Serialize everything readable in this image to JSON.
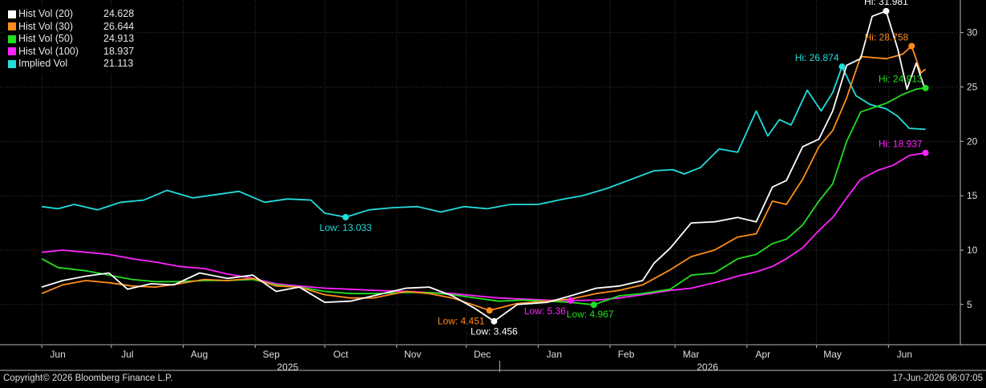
{
  "chart_data": {
    "type": "line",
    "title": "",
    "xlabel": "",
    "ylabel": "",
    "x_range": [
      "2025-06-01",
      "2026-06-17"
    ],
    "ylim": [
      1.3,
      33.0
    ],
    "y_ticks": [
      5,
      10,
      15,
      20,
      25,
      30
    ],
    "y_axis_side": "right",
    "grid": true,
    "legend_position": "top-left",
    "x_ticks": [
      {
        "label": "Jun",
        "date": "2025-06-01"
      },
      {
        "label": "Jul",
        "date": "2025-07-01"
      },
      {
        "label": "Aug",
        "date": "2025-08-01"
      },
      {
        "label": "Sep",
        "date": "2025-09-01"
      },
      {
        "label": "Oct",
        "date": "2025-10-01"
      },
      {
        "label": "Nov",
        "date": "2025-11-01"
      },
      {
        "label": "Dec",
        "date": "2025-12-01"
      },
      {
        "label": "Jan",
        "date": "2026-01-01"
      },
      {
        "label": "Feb",
        "date": "2026-02-01"
      },
      {
        "label": "Mar",
        "date": "2026-03-01"
      },
      {
        "label": "Apr",
        "date": "2026-04-01"
      },
      {
        "label": "May",
        "date": "2026-05-01"
      },
      {
        "label": "Jun",
        "date": "2026-06-01"
      }
    ],
    "year_labels": [
      {
        "label": "2025",
        "date": "2025-09-15"
      },
      {
        "label": "2026",
        "date": "2026-03-15"
      }
    ],
    "year_divider_date": "2026-01-01",
    "series": [
      {
        "name": "Hist Vol (20)",
        "last": "24.628",
        "color": "#ffffff",
        "points": [
          [
            "2025-06-01",
            6.6
          ],
          [
            "2025-06-10",
            7.2
          ],
          [
            "2025-06-20",
            7.6
          ],
          [
            "2025-06-30",
            7.9
          ],
          [
            "2025-07-08",
            6.4
          ],
          [
            "2025-07-18",
            6.9
          ],
          [
            "2025-07-28",
            6.8
          ],
          [
            "2025-08-08",
            7.9
          ],
          [
            "2025-08-20",
            7.4
          ],
          [
            "2025-08-31",
            7.7
          ],
          [
            "2025-09-10",
            6.2
          ],
          [
            "2025-09-20",
            6.6
          ],
          [
            "2025-10-01",
            5.2
          ],
          [
            "2025-10-12",
            5.3
          ],
          [
            "2025-10-22",
            5.8
          ],
          [
            "2025-11-05",
            6.5
          ],
          [
            "2025-11-15",
            6.6
          ],
          [
            "2025-11-25",
            5.8
          ],
          [
            "2025-12-05",
            4.6
          ],
          [
            "2025-12-13",
            3.46
          ],
          [
            "2025-12-23",
            5.0
          ],
          [
            "2026-01-05",
            5.2
          ],
          [
            "2026-01-15",
            5.8
          ],
          [
            "2026-01-26",
            6.5
          ],
          [
            "2026-02-05",
            6.7
          ],
          [
            "2026-02-15",
            7.2
          ],
          [
            "2026-02-20",
            8.8
          ],
          [
            "2026-02-27",
            10.2
          ],
          [
            "2026-03-08",
            12.5
          ],
          [
            "2026-03-18",
            12.6
          ],
          [
            "2026-03-28",
            13.0
          ],
          [
            "2026-04-05",
            12.6
          ],
          [
            "2026-04-12",
            15.8
          ],
          [
            "2026-04-18",
            16.4
          ],
          [
            "2026-04-25",
            19.5
          ],
          [
            "2026-05-02",
            20.2
          ],
          [
            "2026-05-08",
            22.8
          ],
          [
            "2026-05-14",
            27.0
          ],
          [
            "2026-05-20",
            27.6
          ],
          [
            "2026-05-25",
            31.5
          ],
          [
            "2026-05-31",
            31.98
          ],
          [
            "2026-06-05",
            28.5
          ],
          [
            "2026-06-09",
            24.8
          ],
          [
            "2026-06-13",
            27.2
          ],
          [
            "2026-06-17",
            24.63
          ]
        ]
      },
      {
        "name": "Hist Vol (30)",
        "last": "26.644",
        "color": "#ff8c1a",
        "points": [
          [
            "2025-06-01",
            6.0
          ],
          [
            "2025-06-10",
            6.8
          ],
          [
            "2025-06-20",
            7.2
          ],
          [
            "2025-06-30",
            7.0
          ],
          [
            "2025-07-10",
            6.7
          ],
          [
            "2025-07-20",
            6.6
          ],
          [
            "2025-07-30",
            6.9
          ],
          [
            "2025-08-10",
            7.3
          ],
          [
            "2025-08-20",
            7.2
          ],
          [
            "2025-08-31",
            7.4
          ],
          [
            "2025-09-10",
            6.7
          ],
          [
            "2025-09-20",
            6.6
          ],
          [
            "2025-10-01",
            5.9
          ],
          [
            "2025-10-12",
            5.6
          ],
          [
            "2025-10-22",
            5.6
          ],
          [
            "2025-11-05",
            6.2
          ],
          [
            "2025-11-15",
            6.0
          ],
          [
            "2025-11-25",
            5.6
          ],
          [
            "2025-12-05",
            4.9
          ],
          [
            "2025-12-11",
            4.45
          ],
          [
            "2025-12-23",
            5.1
          ],
          [
            "2026-01-05",
            5.3
          ],
          [
            "2026-01-15",
            5.5
          ],
          [
            "2026-01-26",
            6.0
          ],
          [
            "2026-02-05",
            6.3
          ],
          [
            "2026-02-15",
            6.8
          ],
          [
            "2026-02-27",
            8.2
          ],
          [
            "2026-03-08",
            9.4
          ],
          [
            "2026-03-18",
            10.0
          ],
          [
            "2026-03-28",
            11.2
          ],
          [
            "2026-04-05",
            11.5
          ],
          [
            "2026-04-12",
            14.5
          ],
          [
            "2026-04-18",
            14.2
          ],
          [
            "2026-04-25",
            16.5
          ],
          [
            "2026-05-02",
            19.5
          ],
          [
            "2026-05-08",
            21.0
          ],
          [
            "2026-05-14",
            24.0
          ],
          [
            "2026-05-20",
            27.8
          ],
          [
            "2026-05-31",
            27.6
          ],
          [
            "2026-06-07",
            28.0
          ],
          [
            "2026-06-11",
            28.76
          ],
          [
            "2026-06-15",
            26.3
          ],
          [
            "2026-06-17",
            26.64
          ]
        ]
      },
      {
        "name": "Hist Vol (50)",
        "last": "24.913",
        "color": "#22dd22",
        "points": [
          [
            "2025-06-01",
            9.2
          ],
          [
            "2025-06-08",
            8.4
          ],
          [
            "2025-06-20",
            8.1
          ],
          [
            "2025-06-30",
            7.7
          ],
          [
            "2025-07-10",
            7.3
          ],
          [
            "2025-07-20",
            7.1
          ],
          [
            "2025-07-30",
            7.1
          ],
          [
            "2025-08-10",
            7.2
          ],
          [
            "2025-08-20",
            7.2
          ],
          [
            "2025-08-31",
            7.3
          ],
          [
            "2025-09-10",
            6.8
          ],
          [
            "2025-09-20",
            6.6
          ],
          [
            "2025-10-01",
            6.2
          ],
          [
            "2025-10-12",
            6.0
          ],
          [
            "2025-10-22",
            6.0
          ],
          [
            "2025-11-05",
            6.1
          ],
          [
            "2025-11-15",
            6.1
          ],
          [
            "2025-11-25",
            5.9
          ],
          [
            "2025-12-05",
            5.6
          ],
          [
            "2025-12-15",
            5.3
          ],
          [
            "2025-12-25",
            5.4
          ],
          [
            "2026-01-05",
            5.3
          ],
          [
            "2026-01-15",
            5.2
          ],
          [
            "2026-01-25",
            4.97
          ],
          [
            "2026-02-05",
            5.8
          ],
          [
            "2026-02-15",
            6.0
          ],
          [
            "2026-02-27",
            6.4
          ],
          [
            "2026-03-08",
            7.7
          ],
          [
            "2026-03-18",
            7.9
          ],
          [
            "2026-03-28",
            9.2
          ],
          [
            "2026-04-05",
            9.6
          ],
          [
            "2026-04-12",
            10.6
          ],
          [
            "2026-04-18",
            11.0
          ],
          [
            "2026-04-25",
            12.3
          ],
          [
            "2026-05-02",
            14.5
          ],
          [
            "2026-05-08",
            16.1
          ],
          [
            "2026-05-14",
            20.0
          ],
          [
            "2026-05-20",
            22.7
          ],
          [
            "2026-05-31",
            23.5
          ],
          [
            "2026-06-07",
            24.3
          ],
          [
            "2026-06-13",
            24.8
          ],
          [
            "2026-06-17",
            24.91
          ]
        ]
      },
      {
        "name": "Hist Vol (100)",
        "last": "18.937",
        "color": "#ff22ff",
        "points": [
          [
            "2025-06-01",
            9.8
          ],
          [
            "2025-06-10",
            10.0
          ],
          [
            "2025-06-20",
            9.8
          ],
          [
            "2025-06-30",
            9.6
          ],
          [
            "2025-07-10",
            9.2
          ],
          [
            "2025-07-20",
            8.9
          ],
          [
            "2025-07-30",
            8.5
          ],
          [
            "2025-08-10",
            8.3
          ],
          [
            "2025-08-20",
            7.8
          ],
          [
            "2025-08-31",
            7.4
          ],
          [
            "2025-09-10",
            6.9
          ],
          [
            "2025-09-20",
            6.7
          ],
          [
            "2025-10-01",
            6.5
          ],
          [
            "2025-10-12",
            6.4
          ],
          [
            "2025-10-22",
            6.3
          ],
          [
            "2025-11-05",
            6.2
          ],
          [
            "2025-11-15",
            6.1
          ],
          [
            "2025-11-25",
            6.0
          ],
          [
            "2025-12-05",
            5.8
          ],
          [
            "2025-12-15",
            5.6
          ],
          [
            "2025-12-25",
            5.5
          ],
          [
            "2026-01-05",
            5.4
          ],
          [
            "2026-01-15",
            5.36
          ],
          [
            "2026-01-26",
            5.4
          ],
          [
            "2026-02-05",
            5.6
          ],
          [
            "2026-02-15",
            5.9
          ],
          [
            "2026-02-27",
            6.3
          ],
          [
            "2026-03-08",
            6.5
          ],
          [
            "2026-03-18",
            7.0
          ],
          [
            "2026-03-28",
            7.6
          ],
          [
            "2026-04-05",
            8.0
          ],
          [
            "2026-04-12",
            8.5
          ],
          [
            "2026-04-18",
            9.2
          ],
          [
            "2026-04-25",
            10.2
          ],
          [
            "2026-05-02",
            11.8
          ],
          [
            "2026-05-08",
            13.0
          ],
          [
            "2026-05-14",
            14.8
          ],
          [
            "2026-05-20",
            16.5
          ],
          [
            "2026-05-27",
            17.3
          ],
          [
            "2026-06-03",
            17.8
          ],
          [
            "2026-06-10",
            18.7
          ],
          [
            "2026-06-17",
            18.94
          ]
        ]
      },
      {
        "name": "Implied Vol",
        "last": "21.113",
        "color": "#22dddd",
        "points": [
          [
            "2025-06-01",
            14.0
          ],
          [
            "2025-06-08",
            13.8
          ],
          [
            "2025-06-15",
            14.2
          ],
          [
            "2025-06-25",
            13.7
          ],
          [
            "2025-07-05",
            14.4
          ],
          [
            "2025-07-15",
            14.6
          ],
          [
            "2025-07-25",
            15.5
          ],
          [
            "2025-08-05",
            14.8
          ],
          [
            "2025-08-15",
            15.1
          ],
          [
            "2025-08-25",
            15.4
          ],
          [
            "2025-09-05",
            14.4
          ],
          [
            "2025-09-15",
            14.7
          ],
          [
            "2025-09-25",
            14.6
          ],
          [
            "2025-10-01",
            13.4
          ],
          [
            "2025-10-10",
            13.03
          ],
          [
            "2025-10-20",
            13.7
          ],
          [
            "2025-10-30",
            13.9
          ],
          [
            "2025-11-10",
            14.0
          ],
          [
            "2025-11-20",
            13.5
          ],
          [
            "2025-11-30",
            14.0
          ],
          [
            "2025-12-10",
            13.8
          ],
          [
            "2025-12-20",
            14.2
          ],
          [
            "2026-01-01",
            14.2
          ],
          [
            "2026-01-12",
            14.7
          ],
          [
            "2026-01-20",
            15.0
          ],
          [
            "2026-01-31",
            15.7
          ],
          [
            "2026-02-10",
            16.5
          ],
          [
            "2026-02-20",
            17.3
          ],
          [
            "2026-02-28",
            17.4
          ],
          [
            "2026-03-05",
            17.0
          ],
          [
            "2026-03-12",
            17.6
          ],
          [
            "2026-03-20",
            19.3
          ],
          [
            "2026-03-28",
            19.0
          ],
          [
            "2026-04-05",
            22.8
          ],
          [
            "2026-04-10",
            20.5
          ],
          [
            "2026-04-15",
            22.0
          ],
          [
            "2026-04-20",
            21.5
          ],
          [
            "2026-04-27",
            24.7
          ],
          [
            "2026-05-03",
            22.8
          ],
          [
            "2026-05-08",
            24.5
          ],
          [
            "2026-05-12",
            26.87
          ],
          [
            "2026-05-18",
            24.2
          ],
          [
            "2026-05-24",
            23.4
          ],
          [
            "2026-05-31",
            23.0
          ],
          [
            "2026-06-05",
            22.3
          ],
          [
            "2026-06-10",
            21.2
          ],
          [
            "2026-06-17",
            21.11
          ]
        ]
      }
    ],
    "annotations": [
      {
        "series": "Hist Vol (20)",
        "text": "Hi: 31.981",
        "date": "2026-05-31",
        "value": 31.98,
        "placement": "above"
      },
      {
        "series": "Hist Vol (30)",
        "text": "Hi: 28.758",
        "date": "2026-06-11",
        "value": 28.76,
        "placement": "left-above"
      },
      {
        "series": "Hist Vol (50)",
        "text": "Hi: 24.913",
        "date": "2026-06-17",
        "value": 24.91,
        "placement": "left-above"
      },
      {
        "series": "Hist Vol (100)",
        "text": "Hi: 18.937",
        "date": "2026-06-17",
        "value": 18.94,
        "placement": "left-above"
      },
      {
        "series": "Implied Vol",
        "text": "Hi: 26.874",
        "date": "2026-05-12",
        "value": 26.87,
        "placement": "left-above"
      },
      {
        "series": "Hist Vol (20)",
        "text": "Low: 3.456",
        "date": "2025-12-13",
        "value": 3.46,
        "placement": "below"
      },
      {
        "series": "Hist Vol (30)",
        "text": "Low: 4.451",
        "date": "2025-12-11",
        "value": 4.45,
        "placement": "left-below"
      },
      {
        "series": "Hist Vol (50)",
        "text": "Low: 4.967",
        "date": "2026-01-25",
        "value": 4.97,
        "placement": "right-below"
      },
      {
        "series": "Hist Vol (100)",
        "text": "Low: 5.36",
        "date": "2026-01-15",
        "value": 5.36,
        "placement": "left-below"
      },
      {
        "series": "Implied Vol",
        "text": "Low: 13.033",
        "date": "2025-10-10",
        "value": 13.03,
        "placement": "below"
      }
    ]
  },
  "footer": {
    "copyright": "Copyright© 2026 Bloomberg Finance L.P.",
    "timestamp": "17-Jun-2026 06:07:05"
  }
}
